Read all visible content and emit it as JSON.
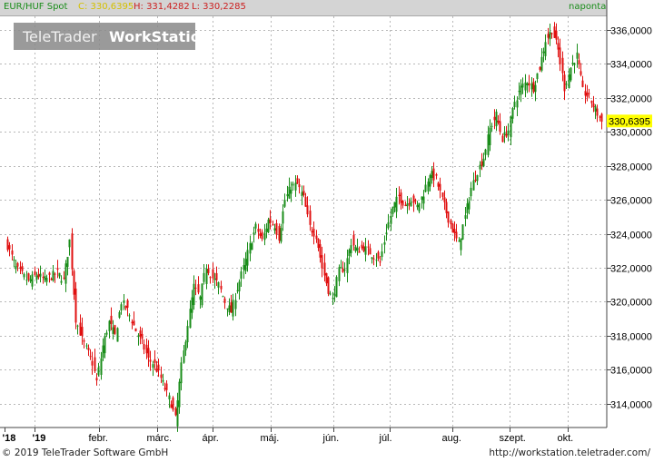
{
  "header": {
    "symbol": "EUR/HUF Spot",
    "close": "C: 330,6395",
    "high": "H: 331,4282",
    "low": "L: 330,2285",
    "period": "naponta"
  },
  "watermark": {
    "part1": "TeleTrader",
    "part2": "WorkStation"
  },
  "footer": {
    "copyright": "© 2019 TeleTrader Software GmbH",
    "url": "http://workstation.teletrader.com/"
  },
  "colors": {
    "up": "#1a8d1a",
    "down": "#e01010",
    "last_price_bg": "#ffff00",
    "header_bg": "#d4d4d4"
  },
  "chart_data": {
    "type": "candlestick",
    "instrument": "EUR/HUF Spot",
    "ylim": [
      312.6,
      336.8
    ],
    "y_ticks": [
      314,
      316,
      318,
      320,
      322,
      324,
      326,
      328,
      330,
      332,
      334,
      336
    ],
    "y_tick_labels": [
      "314,0000",
      "316,0000",
      "318,0000",
      "320,0000",
      "322,0000",
      "324,0000",
      "326,0000",
      "328,0000",
      "330,0000",
      "332,0000",
      "334,0000",
      "336,0000"
    ],
    "x_labels": [
      "'18",
      "'19",
      "febr.",
      "márc.",
      "ápr.",
      "máj.",
      "jún.",
      "júl.",
      "aug.",
      "szept.",
      "okt."
    ],
    "last_price": 330.6395,
    "last_price_label": "330,6395",
    "grid": true,
    "close_path": [
      [
        0,
        323.3
      ],
      [
        4,
        322.0
      ],
      [
        10,
        321.2
      ],
      [
        14,
        321.6
      ],
      [
        18,
        321.3
      ],
      [
        24,
        321.7
      ],
      [
        27,
        321.3
      ],
      [
        30,
        323.6
      ],
      [
        33,
        319.0
      ],
      [
        36,
        317.8
      ],
      [
        41,
        316.4
      ],
      [
        43,
        315.3
      ],
      [
        46,
        317.4
      ],
      [
        49,
        318.8
      ],
      [
        52,
        318.0
      ],
      [
        55,
        320.0
      ],
      [
        58,
        319.5
      ],
      [
        62,
        318.3
      ],
      [
        65,
        317.6
      ],
      [
        68,
        316.6
      ],
      [
        71,
        316.3
      ],
      [
        74,
        315.5
      ],
      [
        77,
        314.6
      ],
      [
        79,
        314.0
      ],
      [
        81,
        313.1
      ],
      [
        84,
        316.2
      ],
      [
        87,
        318.7
      ],
      [
        90,
        320.9
      ],
      [
        93,
        320.2
      ],
      [
        96,
        322.1
      ],
      [
        99,
        321.4
      ],
      [
        102,
        321.0
      ],
      [
        105,
        320.0
      ],
      [
        108,
        319.4
      ],
      [
        111,
        320.8
      ],
      [
        114,
        322.0
      ],
      [
        117,
        323.3
      ],
      [
        120,
        324.4
      ],
      [
        123,
        323.6
      ],
      [
        126,
        324.8
      ],
      [
        129,
        324.5
      ],
      [
        131,
        323.8
      ],
      [
        134,
        326.0
      ],
      [
        137,
        326.8
      ],
      [
        140,
        326.9
      ],
      [
        143,
        326.1
      ],
      [
        146,
        324.4
      ],
      [
        149,
        323.9
      ],
      [
        152,
        322.0
      ],
      [
        155,
        320.7
      ],
      [
        157,
        320.1
      ],
      [
        160,
        321.8
      ],
      [
        163,
        322.0
      ],
      [
        166,
        323.5
      ],
      [
        169,
        323.0
      ],
      [
        172,
        323.2
      ],
      [
        175,
        322.9
      ],
      [
        178,
        322.6
      ],
      [
        180,
        322.3
      ],
      [
        183,
        324.2
      ],
      [
        186,
        325.5
      ],
      [
        189,
        326.2
      ],
      [
        192,
        325.7
      ],
      [
        195,
        326.1
      ],
      [
        198,
        325.6
      ],
      [
        201,
        326.4
      ],
      [
        204,
        327.6
      ],
      [
        207,
        327.2
      ],
      [
        210,
        326.0
      ],
      [
        213,
        324.9
      ],
      [
        216,
        323.9
      ],
      [
        218,
        323.4
      ],
      [
        221,
        325.0
      ],
      [
        224,
        326.7
      ],
      [
        227,
        327.7
      ],
      [
        230,
        328.5
      ],
      [
        233,
        330.2
      ],
      [
        236,
        331.0
      ],
      [
        239,
        329.6
      ],
      [
        242,
        330.1
      ],
      [
        245,
        331.8
      ],
      [
        248,
        332.6
      ],
      [
        251,
        333.0
      ],
      [
        254,
        332.6
      ],
      [
        257,
        333.8
      ],
      [
        260,
        335.4
      ],
      [
        263,
        336.0
      ],
      [
        266,
        334.8
      ],
      [
        269,
        332.6
      ],
      [
        272,
        333.8
      ],
      [
        275,
        334.5
      ],
      [
        278,
        332.4
      ],
      [
        281,
        332.0
      ],
      [
        284,
        331.3
      ],
      [
        287,
        330.6
      ]
    ]
  }
}
